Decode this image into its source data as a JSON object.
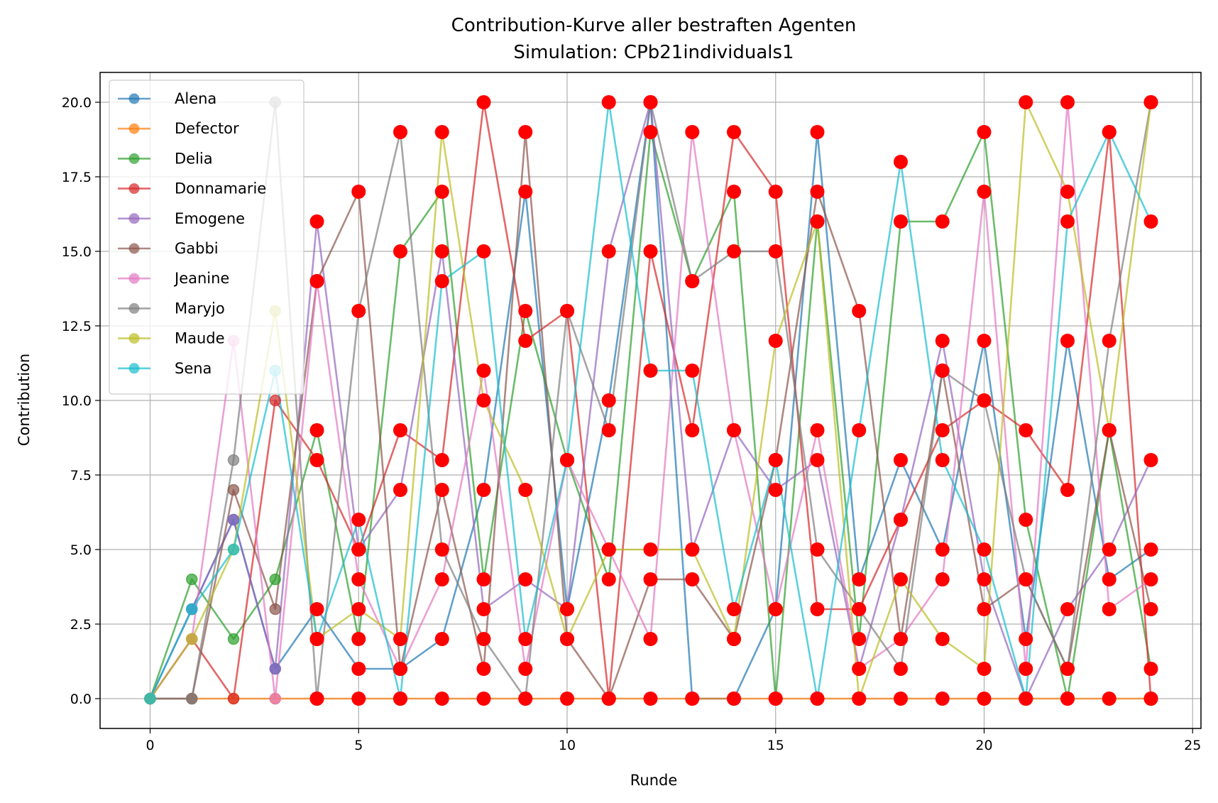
{
  "chart_data": {
    "type": "line",
    "title": "Contribution-Kurve aller bestraften Agenten",
    "subtitle": "Simulation: CPb21individuals1",
    "xlabel": "Runde",
    "ylabel": "Contribution",
    "xlim": [
      -1.2,
      25.2
    ],
    "ylim": [
      -1.0,
      21.0
    ],
    "xticks": [
      0,
      5,
      10,
      15,
      20,
      25
    ],
    "yticks": [
      0.0,
      2.5,
      5.0,
      7.5,
      10.0,
      12.5,
      15.0,
      17.5,
      20.0
    ],
    "grid": true,
    "legend_position": "upper left",
    "punished_marker_color": "#ff0000",
    "x": [
      0,
      1,
      2,
      3,
      4,
      5,
      6,
      7,
      8,
      9,
      10,
      11,
      12,
      13,
      14,
      15,
      16,
      17,
      18,
      19,
      20,
      21,
      22,
      23,
      24
    ],
    "series": [
      {
        "name": "Alena",
        "color": "#1f77b4",
        "values": [
          0,
          3,
          6,
          1,
          3,
          1,
          1,
          2,
          7,
          17,
          3,
          10,
          20,
          0,
          0,
          3,
          19,
          4,
          8,
          5,
          12,
          2,
          12,
          4,
          5
        ]
      },
      {
        "name": "Defector",
        "color": "#ff7f0e",
        "values": [
          0,
          0,
          0,
          0,
          0,
          0,
          0,
          0,
          0,
          0,
          0,
          0,
          0,
          0,
          0,
          0,
          0,
          0,
          0,
          0,
          0,
          0,
          0,
          0,
          0
        ]
      },
      {
        "name": "Delia",
        "color": "#2ca02c",
        "values": [
          0,
          4,
          2,
          4,
          9,
          2,
          15,
          17,
          4,
          13,
          8,
          4,
          19,
          14,
          17,
          0,
          16,
          2,
          16,
          16,
          19,
          6,
          0,
          9,
          1
        ]
      },
      {
        "name": "Donnamarie",
        "color": "#d62728",
        "values": [
          0,
          2,
          0,
          10,
          8,
          5,
          9,
          8,
          20,
          12,
          13,
          0,
          15,
          9,
          19,
          17,
          3,
          3,
          6,
          9,
          10,
          9,
          7,
          19,
          0
        ]
      },
      {
        "name": "Emogene",
        "color": "#9467bd",
        "values": [
          0,
          3,
          6,
          1,
          16,
          5,
          7,
          15,
          3,
          4,
          3,
          15,
          20,
          5,
          9,
          7,
          8,
          1,
          6,
          12,
          4,
          0,
          3,
          5,
          8
        ]
      },
      {
        "name": "Gabbi",
        "color": "#8c564b",
        "values": [
          0,
          0,
          7,
          3,
          14,
          17,
          1,
          7,
          1,
          19,
          2,
          0,
          4,
          4,
          2,
          8,
          17,
          13,
          2,
          11,
          3,
          4,
          1,
          9,
          3
        ]
      },
      {
        "name": "Jeanine",
        "color": "#e377c2",
        "values": [
          0,
          2,
          12,
          0,
          14,
          4,
          1,
          4,
          11,
          1,
          8,
          5,
          2,
          19,
          9,
          3,
          9,
          1,
          2,
          4,
          17,
          1,
          20,
          3,
          4
        ]
      },
      {
        "name": "Maryjo",
        "color": "#7f7f7f",
        "values": [
          0,
          0,
          8,
          20,
          0,
          13,
          19,
          5,
          2,
          0,
          13,
          9,
          20,
          14,
          15,
          15,
          5,
          3,
          1,
          11,
          10,
          4,
          1,
          12,
          20
        ]
      },
      {
        "name": "Maude",
        "color": "#bcbd22",
        "values": [
          0,
          2,
          5,
          13,
          2,
          3,
          2,
          19,
          10,
          7,
          2,
          5,
          5,
          5,
          2,
          12,
          16,
          0,
          4,
          2,
          1,
          20,
          17,
          9,
          20
        ]
      },
      {
        "name": "Sena",
        "color": "#17becf",
        "values": [
          0,
          3,
          5,
          11,
          2,
          6,
          0,
          14,
          15,
          2,
          8,
          20,
          11,
          11,
          3,
          8,
          0,
          9,
          18,
          8,
          5,
          0,
          16,
          19,
          16
        ]
      }
    ]
  }
}
